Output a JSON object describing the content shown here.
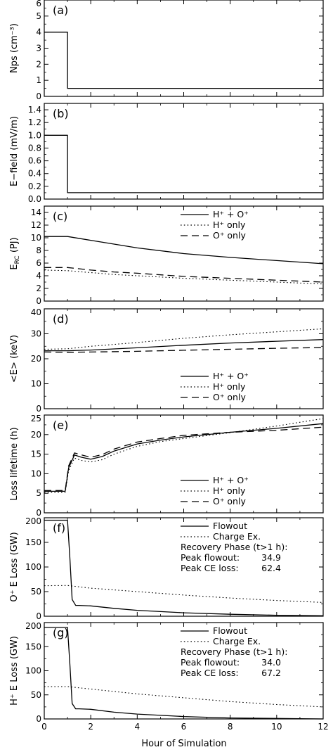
{
  "figure": {
    "xlabel": "Hour of Simulation"
  },
  "chart_data": [
    {
      "type": "line",
      "panel_label": "(a)",
      "ylabel": "Nps (cm⁻³)",
      "ylim": [
        0,
        6
      ],
      "yticks": [
        0,
        1,
        2,
        3,
        4,
        5,
        6
      ],
      "xlim": [
        0,
        12
      ],
      "xticks": [
        0,
        2,
        4,
        6,
        8,
        10,
        12
      ],
      "series": [
        {
          "style": "solid",
          "x": [
            0,
            1,
            1,
            12
          ],
          "y": [
            4,
            4,
            0.5,
            0.5
          ]
        }
      ]
    },
    {
      "type": "line",
      "panel_label": "(b)",
      "ylabel": "E−field (mV/m)",
      "ylim": [
        0,
        1.5
      ],
      "yticks": [
        "0.0",
        "0.2",
        "0.4",
        "0.6",
        "0.8",
        "1.0",
        "1.2",
        "1.4"
      ],
      "xlim": [
        0,
        12
      ],
      "xticks": [
        0,
        2,
        4,
        6,
        8,
        10,
        12
      ],
      "series": [
        {
          "style": "solid",
          "x": [
            0,
            1,
            1,
            12
          ],
          "y": [
            1.0,
            1.0,
            0.1,
            0.1
          ]
        }
      ]
    },
    {
      "type": "line",
      "panel_label": "(c)",
      "ylabel": "E_RC (PJ)",
      "ylim": [
        0,
        15
      ],
      "yticks": [
        0,
        2,
        4,
        6,
        8,
        10,
        12,
        14
      ],
      "xlim": [
        0,
        12
      ],
      "xticks": [
        0,
        2,
        4,
        6,
        8,
        10,
        12
      ],
      "legend": {
        "position": "top-right",
        "entries": [
          {
            "style": "solid",
            "label": "H⁺ + O⁺"
          },
          {
            "style": "dotted",
            "label": "H⁺ only"
          },
          {
            "style": "dashed",
            "label": "O⁺ only"
          }
        ]
      },
      "series": [
        {
          "style": "solid",
          "x": [
            0,
            1,
            2,
            3,
            4,
            6,
            8,
            10,
            12
          ],
          "y": [
            10.2,
            10.2,
            9.6,
            9.0,
            8.4,
            7.5,
            6.9,
            6.4,
            5.9
          ]
        },
        {
          "style": "dotted",
          "x": [
            0,
            1,
            2,
            3,
            4,
            6,
            8,
            10,
            12
          ],
          "y": [
            4.9,
            4.8,
            4.5,
            4.2,
            4.0,
            3.6,
            3.3,
            3.0,
            2.7
          ]
        },
        {
          "style": "dashed",
          "x": [
            0,
            1,
            2,
            3,
            4,
            6,
            8,
            10,
            12
          ],
          "y": [
            5.3,
            5.3,
            4.9,
            4.6,
            4.4,
            3.9,
            3.6,
            3.3,
            3.0
          ]
        }
      ]
    },
    {
      "type": "line",
      "panel_label": "(d)",
      "ylabel": "<E> (keV)",
      "ylim": [
        0,
        40
      ],
      "yticks": [
        0,
        10,
        20,
        30,
        40
      ],
      "xlim": [
        0,
        12
      ],
      "xticks": [
        0,
        2,
        4,
        6,
        8,
        10,
        12
      ],
      "legend": {
        "position": "bottom-right",
        "entries": [
          {
            "style": "solid",
            "label": "H⁺ + O⁺"
          },
          {
            "style": "dotted",
            "label": "H⁺ only"
          },
          {
            "style": "dashed",
            "label": "O⁺ only"
          }
        ]
      },
      "series": [
        {
          "style": "solid",
          "x": [
            0,
            1,
            2,
            4,
            6,
            8,
            10,
            12
          ],
          "y": [
            23.2,
            23.2,
            23.5,
            24.4,
            25.4,
            26.3,
            27.0,
            27.7
          ]
        },
        {
          "style": "dotted",
          "x": [
            0,
            1,
            2,
            4,
            6,
            8,
            10,
            12
          ],
          "y": [
            23.8,
            24.0,
            25.0,
            26.5,
            28.2,
            29.6,
            30.8,
            32.0
          ]
        },
        {
          "style": "dashed",
          "x": [
            0,
            1,
            2,
            4,
            6,
            8,
            10,
            12
          ],
          "y": [
            22.7,
            22.6,
            22.7,
            23.0,
            23.4,
            23.8,
            24.2,
            24.5
          ]
        }
      ]
    },
    {
      "type": "line",
      "panel_label": "(e)",
      "ylabel": "Loss lifetime (h)",
      "ylim": [
        0,
        25
      ],
      "yticks": [
        0,
        5,
        10,
        15,
        20,
        25
      ],
      "xlim": [
        0,
        12
      ],
      "xticks": [
        0,
        2,
        4,
        6,
        8,
        10,
        12
      ],
      "legend": {
        "position": "bottom-right",
        "entries": [
          {
            "style": "solid",
            "label": "H⁺ + O⁺"
          },
          {
            "style": "dotted",
            "label": "H⁺ only"
          },
          {
            "style": "dashed",
            "label": "O⁺ only"
          }
        ]
      },
      "series": [
        {
          "style": "solid",
          "x": [
            0,
            0.9,
            1.05,
            1.3,
            1.6,
            2.0,
            2.5,
            3.0,
            4.0,
            5.0,
            6.0,
            8.0,
            10.0,
            12.0
          ],
          "y": [
            5.5,
            5.5,
            11.5,
            14.8,
            14.2,
            13.7,
            14.4,
            15.8,
            17.6,
            18.6,
            19.4,
            20.6,
            21.6,
            22.8
          ]
        },
        {
          "style": "dotted",
          "x": [
            0,
            0.9,
            1.05,
            1.3,
            1.6,
            2.0,
            2.5,
            3.0,
            4.0,
            5.0,
            6.0,
            8.0,
            10.0,
            12.0
          ],
          "y": [
            5.2,
            5.2,
            10.8,
            14.0,
            13.4,
            13.0,
            13.6,
            15.0,
            17.0,
            18.2,
            19.0,
            20.5,
            22.2,
            24.1
          ]
        },
        {
          "style": "dashed",
          "x": [
            0,
            0.9,
            1.05,
            1.3,
            1.6,
            2.0,
            2.5,
            3.0,
            4.0,
            5.0,
            6.0,
            8.0,
            10.0,
            12.0
          ],
          "y": [
            5.7,
            5.7,
            12.0,
            15.3,
            14.8,
            14.2,
            14.9,
            16.3,
            18.1,
            19.0,
            19.8,
            20.6,
            21.1,
            21.9
          ]
        }
      ]
    },
    {
      "type": "line",
      "panel_label": "(f)",
      "ylabel": "O⁺ E Loss (GW)",
      "ylim": [
        0,
        200
      ],
      "yticks": [
        0,
        50,
        100,
        150,
        200
      ],
      "xlim": [
        0,
        12
      ],
      "xticks": [
        0,
        2,
        4,
        6,
        8,
        10,
        12
      ],
      "legend": {
        "position": "top-right",
        "entries": [
          {
            "style": "solid",
            "label": "Flowout"
          },
          {
            "style": "dotted",
            "label": "Charge Ex."
          }
        ]
      },
      "annotations": [
        {
          "text": "Recovery Phase (t>1 h):"
        },
        {
          "label": "Peak flowout:",
          "value": "34.9"
        },
        {
          "label": "Peak CE loss:",
          "value": "62.4"
        }
      ],
      "series": [
        {
          "style": "solid",
          "x": [
            0,
            1.0,
            1.1,
            1.2,
            1.35,
            1.5,
            2.0,
            3.0,
            4.0,
            6.0,
            8.0,
            10.0,
            12.0
          ],
          "y": [
            195,
            195,
            120,
            34,
            22,
            22,
            21,
            16,
            12,
            7,
            4,
            2,
            1
          ]
        },
        {
          "style": "dotted",
          "x": [
            0,
            1.0,
            2.0,
            4.0,
            6.0,
            8.0,
            10.0,
            12.0
          ],
          "y": [
            62,
            62.4,
            57,
            50,
            43,
            37,
            32,
            28
          ]
        }
      ]
    },
    {
      "type": "line",
      "panel_label": "(g)",
      "ylabel": "H⁺ E Loss (GW)",
      "ylim": [
        0,
        200
      ],
      "yticks": [
        0,
        50,
        100,
        150,
        200
      ],
      "xlim": [
        0,
        12
      ],
      "xticks": [
        0,
        2,
        4,
        6,
        8,
        10,
        12
      ],
      "legend": {
        "position": "top-right",
        "entries": [
          {
            "style": "solid",
            "label": "Flowout"
          },
          {
            "style": "dotted",
            "label": "Charge Ex."
          }
        ]
      },
      "annotations": [
        {
          "text": "Recovery Phase (t>1 h):"
        },
        {
          "label": "Peak flowout:",
          "value": "34.0"
        },
        {
          "label": "Peak CE loss:",
          "value": "67.2"
        }
      ],
      "series": [
        {
          "style": "solid",
          "x": [
            0,
            1.0,
            1.1,
            1.2,
            1.35,
            1.5,
            2.0,
            3.0,
            4.0,
            6.0,
            8.0,
            10.0,
            12.0
          ],
          "y": [
            190,
            190,
            115,
            32,
            21,
            21,
            20,
            14,
            10,
            5,
            2,
            1,
            0
          ]
        },
        {
          "style": "dotted",
          "x": [
            0,
            1.0,
            2.0,
            4.0,
            6.0,
            8.0,
            10.0,
            12.0
          ],
          "y": [
            67,
            67.2,
            62,
            52,
            44,
            36,
            30,
            25
          ]
        }
      ]
    }
  ]
}
